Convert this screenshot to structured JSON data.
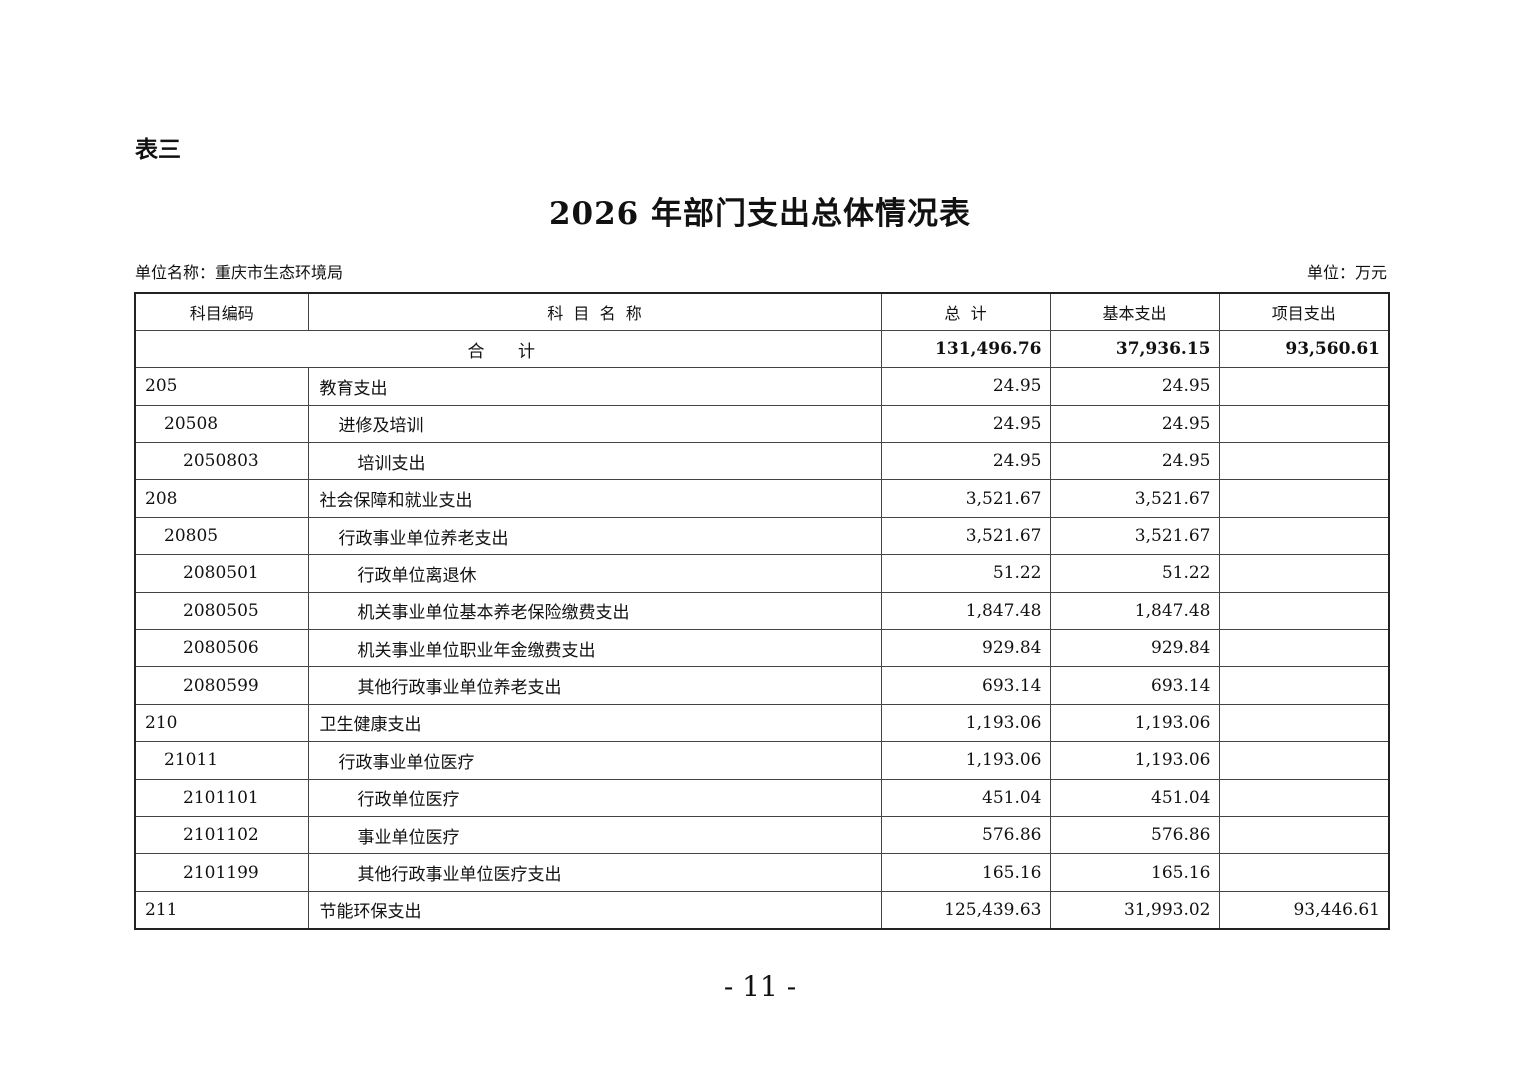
{
  "label": "表三",
  "title": "2026 年部门支出总体情况表",
  "unit_name": "单位名称：重庆市生态环境局",
  "unit": "单位：万元",
  "headers": [
    "科目编码",
    "科  目  名  称",
    "总  计",
    "基本支出",
    "项目支出"
  ],
  "total": {
    "label": "合 计",
    "total": "131,496.76",
    "basic": "37,936.15",
    "project": "93,560.61"
  },
  "rows": [
    {
      "code": "205",
      "name": "教育支出",
      "level": 0,
      "total": "24.95",
      "basic": "24.95",
      "project": ""
    },
    {
      "code": "20508",
      "name": "进修及培训",
      "level": 1,
      "total": "24.95",
      "basic": "24.95",
      "project": ""
    },
    {
      "code": "2050803",
      "name": "培训支出",
      "level": 2,
      "total": "24.95",
      "basic": "24.95",
      "project": ""
    },
    {
      "code": "208",
      "name": "社会保障和就业支出",
      "level": 0,
      "total": "3,521.67",
      "basic": "3,521.67",
      "project": ""
    },
    {
      "code": "20805",
      "name": "行政事业单位养老支出",
      "level": 1,
      "total": "3,521.67",
      "basic": "3,521.67",
      "project": ""
    },
    {
      "code": "2080501",
      "name": "行政单位离退休",
      "level": 2,
      "total": "51.22",
      "basic": "51.22",
      "project": ""
    },
    {
      "code": "2080505",
      "name": "机关事业单位基本养老保险缴费支出",
      "level": 2,
      "total": "1,847.48",
      "basic": "1,847.48",
      "project": ""
    },
    {
      "code": "2080506",
      "name": "机关事业单位职业年金缴费支出",
      "level": 2,
      "total": "929.84",
      "basic": "929.84",
      "project": ""
    },
    {
      "code": "2080599",
      "name": "其他行政事业单位养老支出",
      "level": 2,
      "total": "693.14",
      "basic": "693.14",
      "project": ""
    },
    {
      "code": "210",
      "name": "卫生健康支出",
      "level": 0,
      "total": "1,193.06",
      "basic": "1,193.06",
      "project": ""
    },
    {
      "code": "21011",
      "name": "行政事业单位医疗",
      "level": 1,
      "total": "1,193.06",
      "basic": "1,193.06",
      "project": ""
    },
    {
      "code": "2101101",
      "name": "行政单位医疗",
      "level": 2,
      "total": "451.04",
      "basic": "451.04",
      "project": ""
    },
    {
      "code": "2101102",
      "name": "事业单位医疗",
      "level": 2,
      "total": "576.86",
      "basic": "576.86",
      "project": ""
    },
    {
      "code": "2101199",
      "name": "其他行政事业单位医疗支出",
      "level": 2,
      "total": "165.16",
      "basic": "165.16",
      "project": ""
    },
    {
      "code": "211",
      "name": "节能环保支出",
      "level": 0,
      "total": "125,439.63",
      "basic": "31,993.02",
      "project": "93,446.61"
    }
  ],
  "page_number": "- 11 -"
}
